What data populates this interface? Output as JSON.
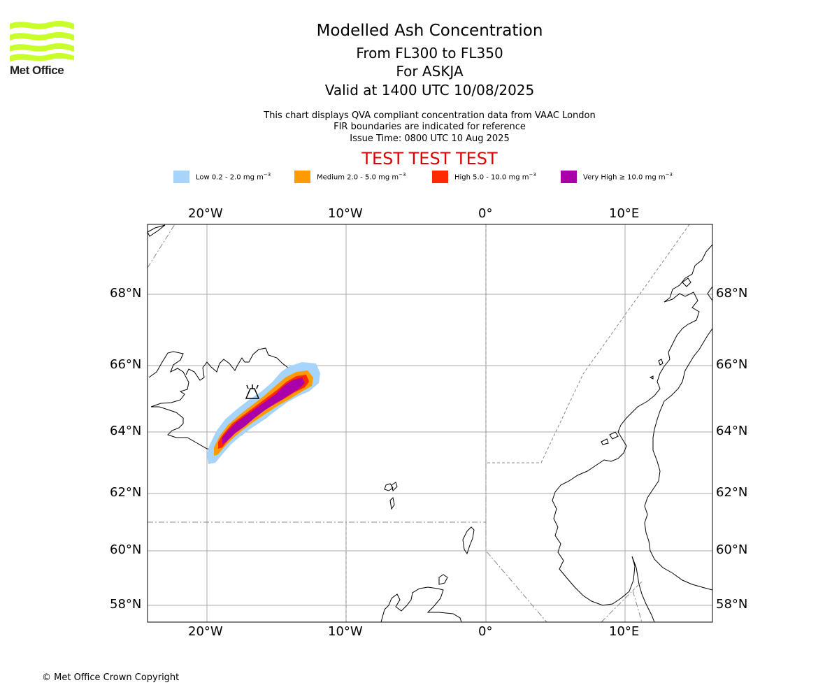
{
  "header": {
    "logo_text": "Met Office",
    "title": "Modelled Ash Concentration",
    "levels": "From FL300 to FL350",
    "volcano": "For ASKJA",
    "valid": "Valid at 1400 UTC 10/08/2025",
    "line1": "This chart displays QVA compliant concentration data from VAAC London",
    "line2": "FIR boundaries are indicated for reference",
    "line3": "Issue Time: 0800 UTC 10 Aug 2025",
    "test_banner": "TEST TEST TEST"
  },
  "legend": [
    {
      "label": "Low 0.2 - 2.0 mg m",
      "sup": "−3",
      "color": "#a6d4fa"
    },
    {
      "label": "Medium 2.0 - 5.0 mg m",
      "sup": "−3",
      "color": "#ff9a00"
    },
    {
      "label": "High 5.0 - 10.0 mg m",
      "sup": "−3",
      "color": "#ff2a00"
    },
    {
      "label": "Very High ≥ 10.0 mg m",
      "sup": "−3",
      "color": "#aa00aa"
    }
  ],
  "axes": {
    "lon_ticks": [
      "20°W",
      "10°W",
      "0°",
      "10°E"
    ],
    "lat_ticks": [
      "68°N",
      "66°N",
      "64°N",
      "62°N",
      "60°N",
      "58°N"
    ]
  },
  "map": {
    "volcano_icon": "volcano-icon",
    "colors": {
      "grid": "#aaaaaa",
      "coast": "#000000",
      "fir": "#888888",
      "frame": "#000000"
    }
  },
  "footer": {
    "copyright": "© Met Office Crown Copyright"
  }
}
